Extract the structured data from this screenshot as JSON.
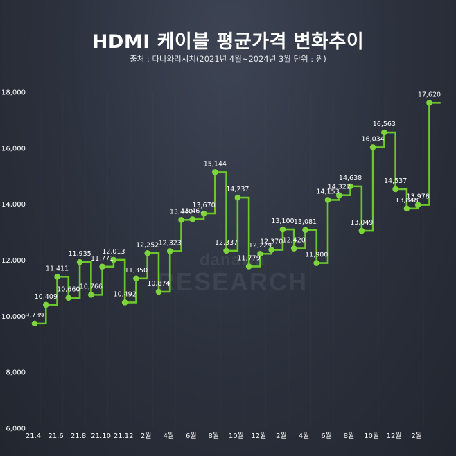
{
  "title": "HDMI 케이블 평균가격 변화추이",
  "subtitle": "출처 : 다나와리서치(2021년 4월~2024년 3월 단위 : 원)",
  "watermark": {
    "line1": "danawa",
    "line2": "RESEARCH"
  },
  "colors": {
    "line": "#6cc72b",
    "marker": "#7ed43c",
    "background": "#2b303c",
    "grid": "#3f4552"
  },
  "chart_data": {
    "type": "line",
    "step": true,
    "title": "HDMI 케이블 평균가격 변화추이",
    "subtitle": "출처 : 다나와리서치(2021년 4월~2024년 3월 단위 : 원)",
    "xlabel": "",
    "ylabel": "",
    "ylim": [
      6000,
      18000
    ],
    "yticks": [
      "6,000",
      "8,000",
      "10,000",
      "12,000",
      "14,000",
      "16,000",
      "18,000"
    ],
    "ytick_values": [
      6000,
      8000,
      10000,
      12000,
      14000,
      16000,
      18000
    ],
    "x_tick_labels": [
      "21.4",
      "21.6",
      "21.8",
      "21.10",
      "21.12",
      "2월",
      "4월",
      "6월",
      "8월",
      "10월",
      "12월",
      "2월",
      "4월",
      "6월",
      "8월",
      "10월",
      "12월",
      "2월"
    ],
    "x_tick_positions": [
      0,
      2,
      4,
      6,
      8,
      10,
      12,
      14,
      16,
      18,
      20,
      22,
      24,
      26,
      28,
      30,
      32,
      34
    ],
    "categories": [
      "2021-04",
      "2021-05",
      "2021-06",
      "2021-07",
      "2021-08",
      "2021-09",
      "2021-10",
      "2021-11",
      "2021-12",
      "2022-01",
      "2022-02",
      "2022-03",
      "2022-04",
      "2022-05",
      "2022-06",
      "2022-07",
      "2022-08",
      "2022-09",
      "2022-10",
      "2022-11",
      "2022-12",
      "2023-01",
      "2023-02",
      "2023-03",
      "2023-04",
      "2023-05",
      "2023-06",
      "2023-07",
      "2023-08",
      "2023-09",
      "2023-10",
      "2023-11",
      "2023-12",
      "2024-01",
      "2024-02",
      "2024-03"
    ],
    "values": [
      9739,
      10409,
      11411,
      10660,
      11935,
      10766,
      11771,
      12013,
      10492,
      11350,
      12252,
      10874,
      12323,
      13440,
      13461,
      13670,
      15144,
      12337,
      14237,
      11779,
      12229,
      12370,
      13100,
      12420,
      13081,
      11900,
      14153,
      14322,
      14638,
      13049,
      16034,
      16563,
      14537,
      13848,
      13978,
      17620
    ],
    "labels": [
      "9,739",
      "10,409",
      "11,411",
      "10,660",
      "11,935",
      "10,766",
      "11,771",
      "12,013",
      "10,492",
      "11,350",
      "12,252",
      "10,874",
      "12,323",
      "13,440",
      "13,461",
      "13,670",
      "15,144",
      "12,337",
      "14,237",
      "11,779",
      "12,229",
      "12,370",
      "13,100",
      "12,420",
      "13,081",
      "11,900",
      "14,153",
      "14,322",
      "14,638",
      "13,049",
      "16,034",
      "16,563",
      "14,537",
      "13,848",
      "13,978",
      "17,620"
    ],
    "grid": false
  }
}
